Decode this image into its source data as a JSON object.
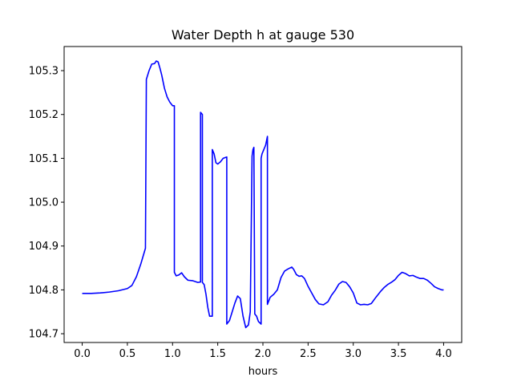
{
  "chart_data": {
    "type": "line",
    "title": "Water Depth h at gauge 530",
    "xlabel": "hours",
    "ylabel": "",
    "xlim": [
      -0.2,
      4.2
    ],
    "ylim": [
      104.68,
      105.355
    ],
    "grid": false,
    "xticks": [
      0.0,
      0.5,
      1.0,
      1.5,
      2.0,
      2.5,
      3.0,
      3.5,
      4.0
    ],
    "xtick_labels": [
      "0.0",
      "0.5",
      "1.0",
      "1.5",
      "2.0",
      "2.5",
      "3.0",
      "3.5",
      "4.0"
    ],
    "yticks": [
      104.7,
      104.8,
      104.9,
      105.0,
      105.1,
      105.2,
      105.3
    ],
    "ytick_labels": [
      "104.7",
      "104.8",
      "104.9",
      "105.0",
      "105.1",
      "105.2",
      "105.3"
    ],
    "series": [
      {
        "color": "#0000ff",
        "x": [
          0.0,
          0.1,
          0.2,
          0.3,
          0.4,
          0.5,
          0.55,
          0.6,
          0.65,
          0.7,
          0.71,
          0.71,
          0.74,
          0.77,
          0.8,
          0.82,
          0.84,
          0.86,
          0.88,
          0.91,
          0.94,
          0.97,
          1.0,
          1.02,
          1.02,
          1.04,
          1.07,
          1.1,
          1.13,
          1.17,
          1.22,
          1.28,
          1.31,
          1.31,
          1.33,
          1.33,
          1.35,
          1.37,
          1.39,
          1.41,
          1.44,
          1.44,
          1.46,
          1.48,
          1.5,
          1.53,
          1.56,
          1.6,
          1.6,
          1.63,
          1.66,
          1.69,
          1.72,
          1.75,
          1.78,
          1.81,
          1.84,
          1.86,
          1.88,
          1.88,
          1.89,
          1.9,
          1.91,
          1.91,
          1.93,
          1.95,
          1.98,
          1.98,
          1.99,
          2.01,
          2.03,
          2.05,
          2.05,
          2.08,
          2.12,
          2.16,
          2.2,
          2.24,
          2.28,
          2.32,
          2.34,
          2.37,
          2.4,
          2.43,
          2.46,
          2.5,
          2.54,
          2.58,
          2.62,
          2.67,
          2.72,
          2.76,
          2.8,
          2.84,
          2.88,
          2.92,
          2.96,
          3.0,
          3.04,
          3.08,
          3.12,
          3.16,
          3.2,
          3.25,
          3.3,
          3.34,
          3.38,
          3.42,
          3.46,
          3.5,
          3.54,
          3.58,
          3.62,
          3.66,
          3.7,
          3.74,
          3.78,
          3.82,
          3.86,
          3.9,
          3.94,
          3.98,
          4.0
        ],
        "y": [
          104.792,
          104.792,
          104.793,
          104.795,
          104.798,
          104.803,
          104.81,
          104.83,
          104.86,
          104.895,
          105.28,
          105.28,
          105.3,
          105.315,
          105.316,
          105.322,
          105.32,
          105.306,
          105.29,
          105.26,
          105.24,
          105.228,
          105.22,
          105.22,
          104.84,
          104.832,
          104.834,
          104.839,
          104.83,
          104.822,
          104.821,
          104.817,
          104.818,
          105.205,
          105.2,
          104.817,
          104.812,
          104.79,
          104.76,
          104.74,
          104.74,
          105.12,
          105.11,
          105.09,
          105.087,
          105.092,
          105.1,
          105.103,
          104.722,
          104.73,
          104.75,
          104.77,
          104.786,
          104.78,
          104.74,
          104.714,
          104.72,
          104.75,
          105.105,
          105.105,
          105.12,
          105.125,
          104.745,
          104.745,
          104.74,
          104.728,
          104.722,
          105.1,
          105.11,
          105.12,
          105.13,
          105.15,
          104.767,
          104.783,
          104.79,
          104.8,
          104.828,
          104.843,
          104.848,
          104.852,
          104.847,
          104.835,
          104.831,
          104.832,
          104.826,
          104.808,
          104.793,
          104.778,
          104.768,
          104.766,
          104.773,
          104.788,
          104.799,
          104.813,
          104.819,
          104.817,
          104.807,
          104.793,
          104.77,
          104.766,
          104.767,
          104.766,
          104.769,
          104.783,
          104.796,
          104.805,
          104.812,
          104.817,
          104.823,
          104.833,
          104.84,
          104.837,
          104.832,
          104.833,
          104.829,
          104.826,
          104.826,
          104.822,
          104.815,
          104.807,
          104.803,
          104.8,
          104.8
        ]
      }
    ]
  }
}
